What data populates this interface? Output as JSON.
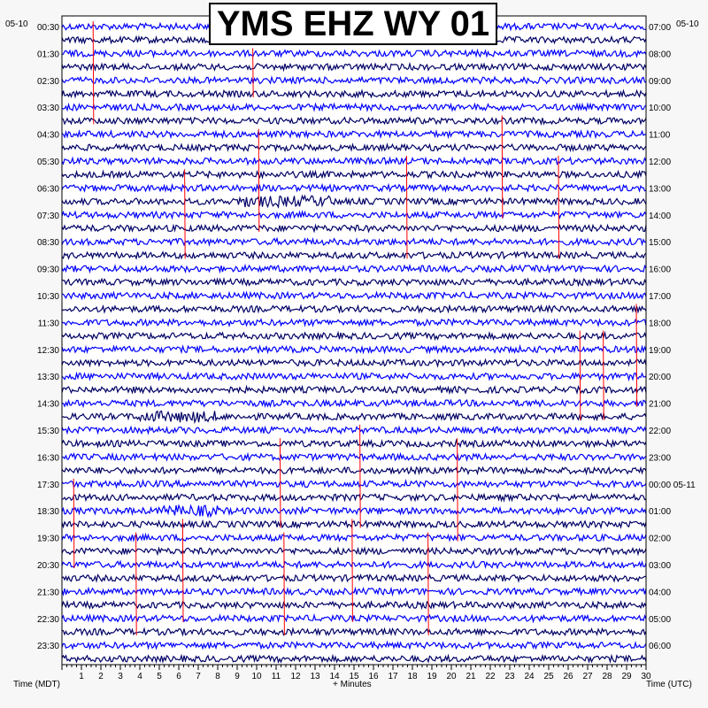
{
  "chart_data": {
    "type": "line",
    "title": "YMS EHZ WY 01",
    "xlabel": "+ Minutes",
    "left_axis_label": "Time (MDT)",
    "right_axis_label": "Time (UTC)",
    "left_date": "05-10",
    "right_date": "05-10",
    "x_range": [
      0,
      30
    ],
    "x_ticks": [
      "1",
      "2",
      "3",
      "4",
      "5",
      "6",
      "7",
      "8",
      "9",
      "10",
      "11",
      "12",
      "13",
      "14",
      "15",
      "16",
      "17",
      "18",
      "19",
      "20",
      "21",
      "22",
      "23",
      "24",
      "25",
      "26",
      "27",
      "28",
      "29",
      "30"
    ],
    "rows": 48,
    "row_minutes": 30,
    "left_time_labels": [
      "00:30",
      "01:30",
      "02:30",
      "03:30",
      "04:30",
      "05:30",
      "06:30",
      "07:30",
      "08:30",
      "09:30",
      "10:30",
      "11:30",
      "12:30",
      "13:30",
      "14:30",
      "15:30",
      "16:30",
      "17:30",
      "18:30",
      "19:30",
      "20:30",
      "21:30",
      "22:30",
      "23:30"
    ],
    "right_time_labels": [
      "07:00",
      "08:00",
      "09:00",
      "10:00",
      "11:00",
      "12:00",
      "13:00",
      "14:00",
      "15:00",
      "16:00",
      "17:00",
      "18:00",
      "19:00",
      "20:00",
      "21:00",
      "22:00",
      "23:00",
      "00:00 05-11",
      "01:00",
      "02:00",
      "03:00",
      "04:00",
      "05:00",
      "06:00"
    ],
    "trace_colors": [
      "#0000ff",
      "#000066"
    ],
    "event_color": "#ff0000",
    "events": [
      {
        "minute": 1.6,
        "start_row": 0,
        "end_row": 7
      },
      {
        "minute": 9.8,
        "start_row": 2,
        "end_row": 5
      },
      {
        "minute": 10.1,
        "start_row": 8,
        "end_row": 15
      },
      {
        "minute": 6.3,
        "start_row": 11,
        "end_row": 17
      },
      {
        "minute": 17.7,
        "start_row": 10,
        "end_row": 17
      },
      {
        "minute": 22.6,
        "start_row": 7,
        "end_row": 14
      },
      {
        "minute": 25.5,
        "start_row": 10,
        "end_row": 17
      },
      {
        "minute": 26.6,
        "start_row": 23,
        "end_row": 29
      },
      {
        "minute": 27.8,
        "start_row": 23,
        "end_row": 29
      },
      {
        "minute": 29.5,
        "start_row": 21,
        "end_row": 28
      },
      {
        "minute": 11.2,
        "start_row": 31,
        "end_row": 37
      },
      {
        "minute": 15.3,
        "start_row": 30,
        "end_row": 37
      },
      {
        "minute": 20.3,
        "start_row": 31,
        "end_row": 38
      },
      {
        "minute": 0.6,
        "start_row": 34,
        "end_row": 40
      },
      {
        "minute": 6.2,
        "start_row": 37,
        "end_row": 44
      },
      {
        "minute": 3.8,
        "start_row": 38,
        "end_row": 45
      },
      {
        "minute": 11.4,
        "start_row": 38,
        "end_row": 45
      },
      {
        "minute": 14.9,
        "start_row": 37,
        "end_row": 44
      },
      {
        "minute": 18.8,
        "start_row": 38,
        "end_row": 45
      }
    ],
    "noisy_patches": [
      {
        "row": 13,
        "from_minute": 9,
        "to_minute": 14
      },
      {
        "row": 29,
        "from_minute": 4,
        "to_minute": 8
      },
      {
        "row": 36,
        "from_minute": 5,
        "to_minute": 8
      }
    ]
  }
}
